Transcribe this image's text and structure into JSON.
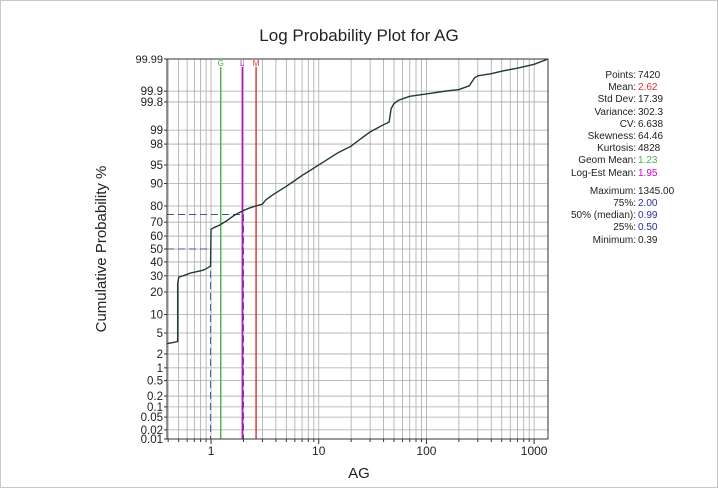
{
  "colors": {
    "curve": "#1f3a36",
    "geom": "#4caf50",
    "logest": "#cc00cc",
    "mean": "#e03030",
    "quartile": "#2a2aa8",
    "dash": "#3c5a80",
    "grid": "#a9a9a9"
  },
  "chart_data": {
    "type": "line",
    "title": "Log Probability Plot for AG",
    "xlabel": "AG",
    "ylabel": "Cumulative Probability %",
    "x_scale": "log",
    "y_scale": "probability",
    "xlim": [
      0.39,
      1345
    ],
    "ylim": [
      0.01,
      99.99
    ],
    "x_ticks": [
      1,
      10,
      100,
      1000
    ],
    "x_tick_labels": [
      "1",
      "10",
      "100",
      "1000"
    ],
    "y_ticks": [
      0.01,
      0.02,
      0.05,
      0.1,
      0.2,
      0.5,
      1,
      2,
      5,
      10,
      20,
      30,
      40,
      50,
      60,
      70,
      80,
      90,
      95,
      98,
      99,
      99.8,
      99.9,
      99.99
    ],
    "y_tick_labels": [
      "0.01",
      "0.02",
      "0.05",
      "0.1",
      "0.2",
      "0.5",
      "1",
      "2",
      "5",
      "10",
      "20",
      "30",
      "40",
      "50",
      "60",
      "70",
      "80",
      "90",
      "95",
      "98",
      "99",
      "99.8",
      "99.9",
      "99.99"
    ],
    "grid": true,
    "series": [
      {
        "x": [
          0.39,
          0.49,
          0.49,
          0.5,
          0.5,
          0.52,
          0.55,
          0.6,
          0.65,
          0.7,
          0.75,
          0.8,
          0.85,
          0.9,
          0.95,
          0.99,
          1.0,
          1.05,
          1.2,
          1.4,
          1.6,
          1.8,
          1.95,
          2.0,
          2.1,
          2.3,
          2.6,
          3.0,
          3.2,
          3.6,
          4.2,
          5.0,
          6.0,
          7.0,
          8.0,
          10.0,
          12.0,
          15.0,
          20.0,
          25.0,
          30.0,
          38.0,
          45.0,
          47.0,
          50.0,
          55.0,
          70.0,
          100.0,
          150.0,
          200.0,
          250.0,
          280.0,
          300.0,
          400.0,
          500.0,
          700.0,
          1000.0,
          1345.0
        ],
        "y": [
          3.2,
          3.5,
          25,
          28.5,
          29,
          29.5,
          30,
          31,
          32,
          32.5,
          33,
          33.5,
          34,
          35,
          36,
          37,
          65,
          66,
          68,
          71,
          74,
          76,
          77,
          77.5,
          78,
          79,
          80,
          81,
          83,
          85,
          87,
          89,
          91,
          92.5,
          93.5,
          95,
          96,
          97,
          97.8,
          98.5,
          98.9,
          99.2,
          99.35,
          99.7,
          99.78,
          99.82,
          99.86,
          99.88,
          99.9,
          99.91,
          99.93,
          99.96,
          99.965,
          99.97,
          99.975,
          99.98,
          99.985,
          99.99
        ]
      }
    ],
    "reference_lines": [
      {
        "label": "G",
        "x": 1.23,
        "color": "#4caf50"
      },
      {
        "label": "L",
        "x": 1.95,
        "color": "#cc00cc"
      },
      {
        "label": "M",
        "x": 2.62,
        "color": "#e03030"
      }
    ],
    "quartile_markers": [
      {
        "x": 0.99,
        "y": 50
      },
      {
        "x": 2.0,
        "y": 75
      }
    ]
  },
  "stats": {
    "points": {
      "label": "Points:",
      "value": "7420"
    },
    "mean": {
      "label": "Mean:",
      "value": "2.62"
    },
    "std_dev": {
      "label": "Std Dev:",
      "value": "17.39"
    },
    "variance": {
      "label": "Variance:",
      "value": "302.3"
    },
    "cv": {
      "label": "CV:",
      "value": "6.638"
    },
    "skewness": {
      "label": "Skewness:",
      "value": "64.46"
    },
    "kurtosis": {
      "label": "Kurtosis:",
      "value": "4828"
    },
    "geom_mean": {
      "label": "Geom Mean:",
      "value": "1.23"
    },
    "log_est_mean": {
      "label": "Log-Est Mean:",
      "value": "1.95"
    },
    "maximum": {
      "label": "Maximum:",
      "value": "1345.00"
    },
    "p75": {
      "label": "75%:",
      "value": "2.00"
    },
    "median": {
      "label": "50% (median):",
      "value": "0.99"
    },
    "p25": {
      "label": "25%:",
      "value": "0.50"
    },
    "minimum": {
      "label": "Minimum:",
      "value": "0.39"
    }
  }
}
